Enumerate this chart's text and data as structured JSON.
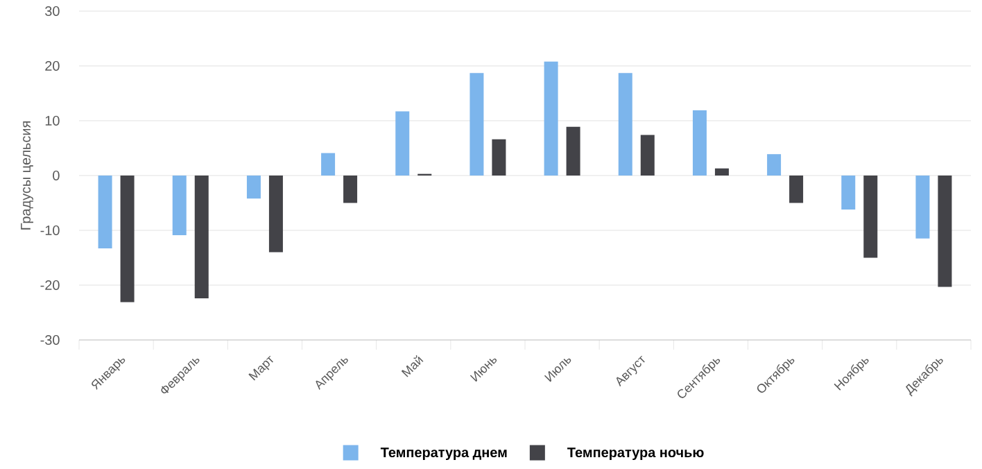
{
  "chart_data": {
    "type": "bar",
    "ylabel": "Градусы цельсия",
    "categories": [
      "Январь",
      "Февраль",
      "Март",
      "Апрель",
      "Май",
      "Июнь",
      "Июль",
      "Август",
      "Сентябрь",
      "Октябрь",
      "Ноябрь",
      "Декабрь"
    ],
    "series": [
      {
        "name": "Температура днем",
        "color": "#7cb5ec",
        "values": [
          -13.3,
          -10.9,
          -4.2,
          4.1,
          11.7,
          18.7,
          20.8,
          18.7,
          11.9,
          3.9,
          -6.2,
          -11.5
        ]
      },
      {
        "name": "Температура ночью",
        "color": "#434348",
        "values": [
          -23.1,
          -22.4,
          -14.0,
          -5.0,
          0.3,
          6.6,
          8.9,
          7.4,
          1.3,
          -5.0,
          -15.0,
          -20.3
        ]
      }
    ],
    "ylim": [
      -30,
      30
    ],
    "yticks": [
      -30,
      -20,
      -10,
      0,
      10,
      20,
      30
    ],
    "grid": "y",
    "legend": "bottom"
  }
}
